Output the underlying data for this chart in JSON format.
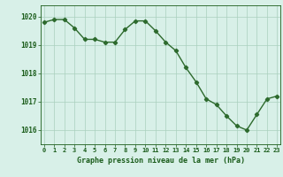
{
  "hours": [
    0,
    1,
    2,
    3,
    4,
    5,
    6,
    7,
    8,
    9,
    10,
    11,
    12,
    13,
    14,
    15,
    16,
    17,
    18,
    19,
    20,
    21,
    22,
    23
  ],
  "pressure": [
    1019.8,
    1019.9,
    1019.9,
    1019.6,
    1019.2,
    1019.2,
    1019.1,
    1019.1,
    1019.55,
    1019.85,
    1019.85,
    1019.5,
    1019.1,
    1018.8,
    1018.2,
    1017.7,
    1017.1,
    1016.9,
    1016.5,
    1016.15,
    1016.0,
    1016.55,
    1017.1,
    1017.2
  ],
  "line_color": "#2d6a2d",
  "marker": "D",
  "marker_size": 2.2,
  "bg_color": "#d8f0e8",
  "grid_color": "#aacfbe",
  "ylabel_ticks": [
    1016,
    1017,
    1018,
    1019,
    1020
  ],
  "ylim": [
    1015.5,
    1020.4
  ],
  "xlim": [
    -0.3,
    23.3
  ],
  "xlabel": "Graphe pression niveau de la mer (hPa)",
  "xlabel_color": "#1a5c1a",
  "xlabel_fontsize": 6.0,
  "tick_color": "#1a5c1a",
  "ytick_fontsize": 5.5,
  "xtick_fontsize": 5.0,
  "line_width": 1.0
}
